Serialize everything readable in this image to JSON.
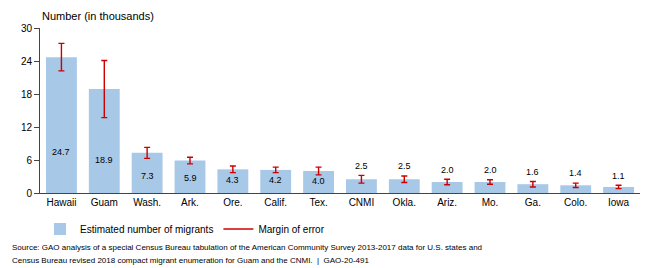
{
  "chart_data": {
    "type": "bar",
    "ylabel": "Number (in thousands)",
    "categories": [
      "Hawaii",
      "Guam",
      "Wash.",
      "Ark.",
      "Ore.",
      "Calif.",
      "Tex.",
      "CNMI",
      "Okla.",
      "Ariz.",
      "Mo.",
      "Ga.",
      "Colo.",
      "Iowa"
    ],
    "series": [
      {
        "name": "Estimated number of migrants",
        "color": "#a8c8e8",
        "values": [
          24.7,
          18.9,
          7.3,
          5.9,
          4.3,
          4.2,
          4.0,
          2.5,
          2.5,
          2.0,
          2.0,
          1.6,
          1.4,
          1.1
        ],
        "value_labels": [
          "24.7",
          "18.9",
          "7.3",
          "5.9",
          "4.3",
          "4.2",
          "4.0",
          "2.5",
          "2.5",
          "2.0",
          "2.0",
          "1.6",
          "1.4",
          "1.1"
        ],
        "errors_upper": [
          2.5,
          5.2,
          1.0,
          0.6,
          0.6,
          0.5,
          0.7,
          0.7,
          0.6,
          0.5,
          0.4,
          0.5,
          0.4,
          0.3
        ],
        "errors_lower": [
          2.5,
          5.2,
          1.0,
          0.6,
          0.6,
          0.5,
          0.7,
          0.7,
          0.6,
          0.5,
          0.4,
          0.5,
          0.4,
          0.3
        ],
        "error_name": "Margin of error",
        "error_color": "#cc0000"
      }
    ],
    "ylim": [
      0,
      30
    ],
    "yticks": [
      0,
      6,
      12,
      18,
      24,
      30
    ],
    "grid": false,
    "legend": "bottom",
    "data_labels": true,
    "notes": [
      "Source: GAO analysis of a special Census Bureau tabulation of the American Community Survey 2013-2017 data for U.S. states and",
      "Census Bureau revised 2018 compact migrant enumeration for Guam and the CNMI.  |  GAO-20-491"
    ]
  }
}
